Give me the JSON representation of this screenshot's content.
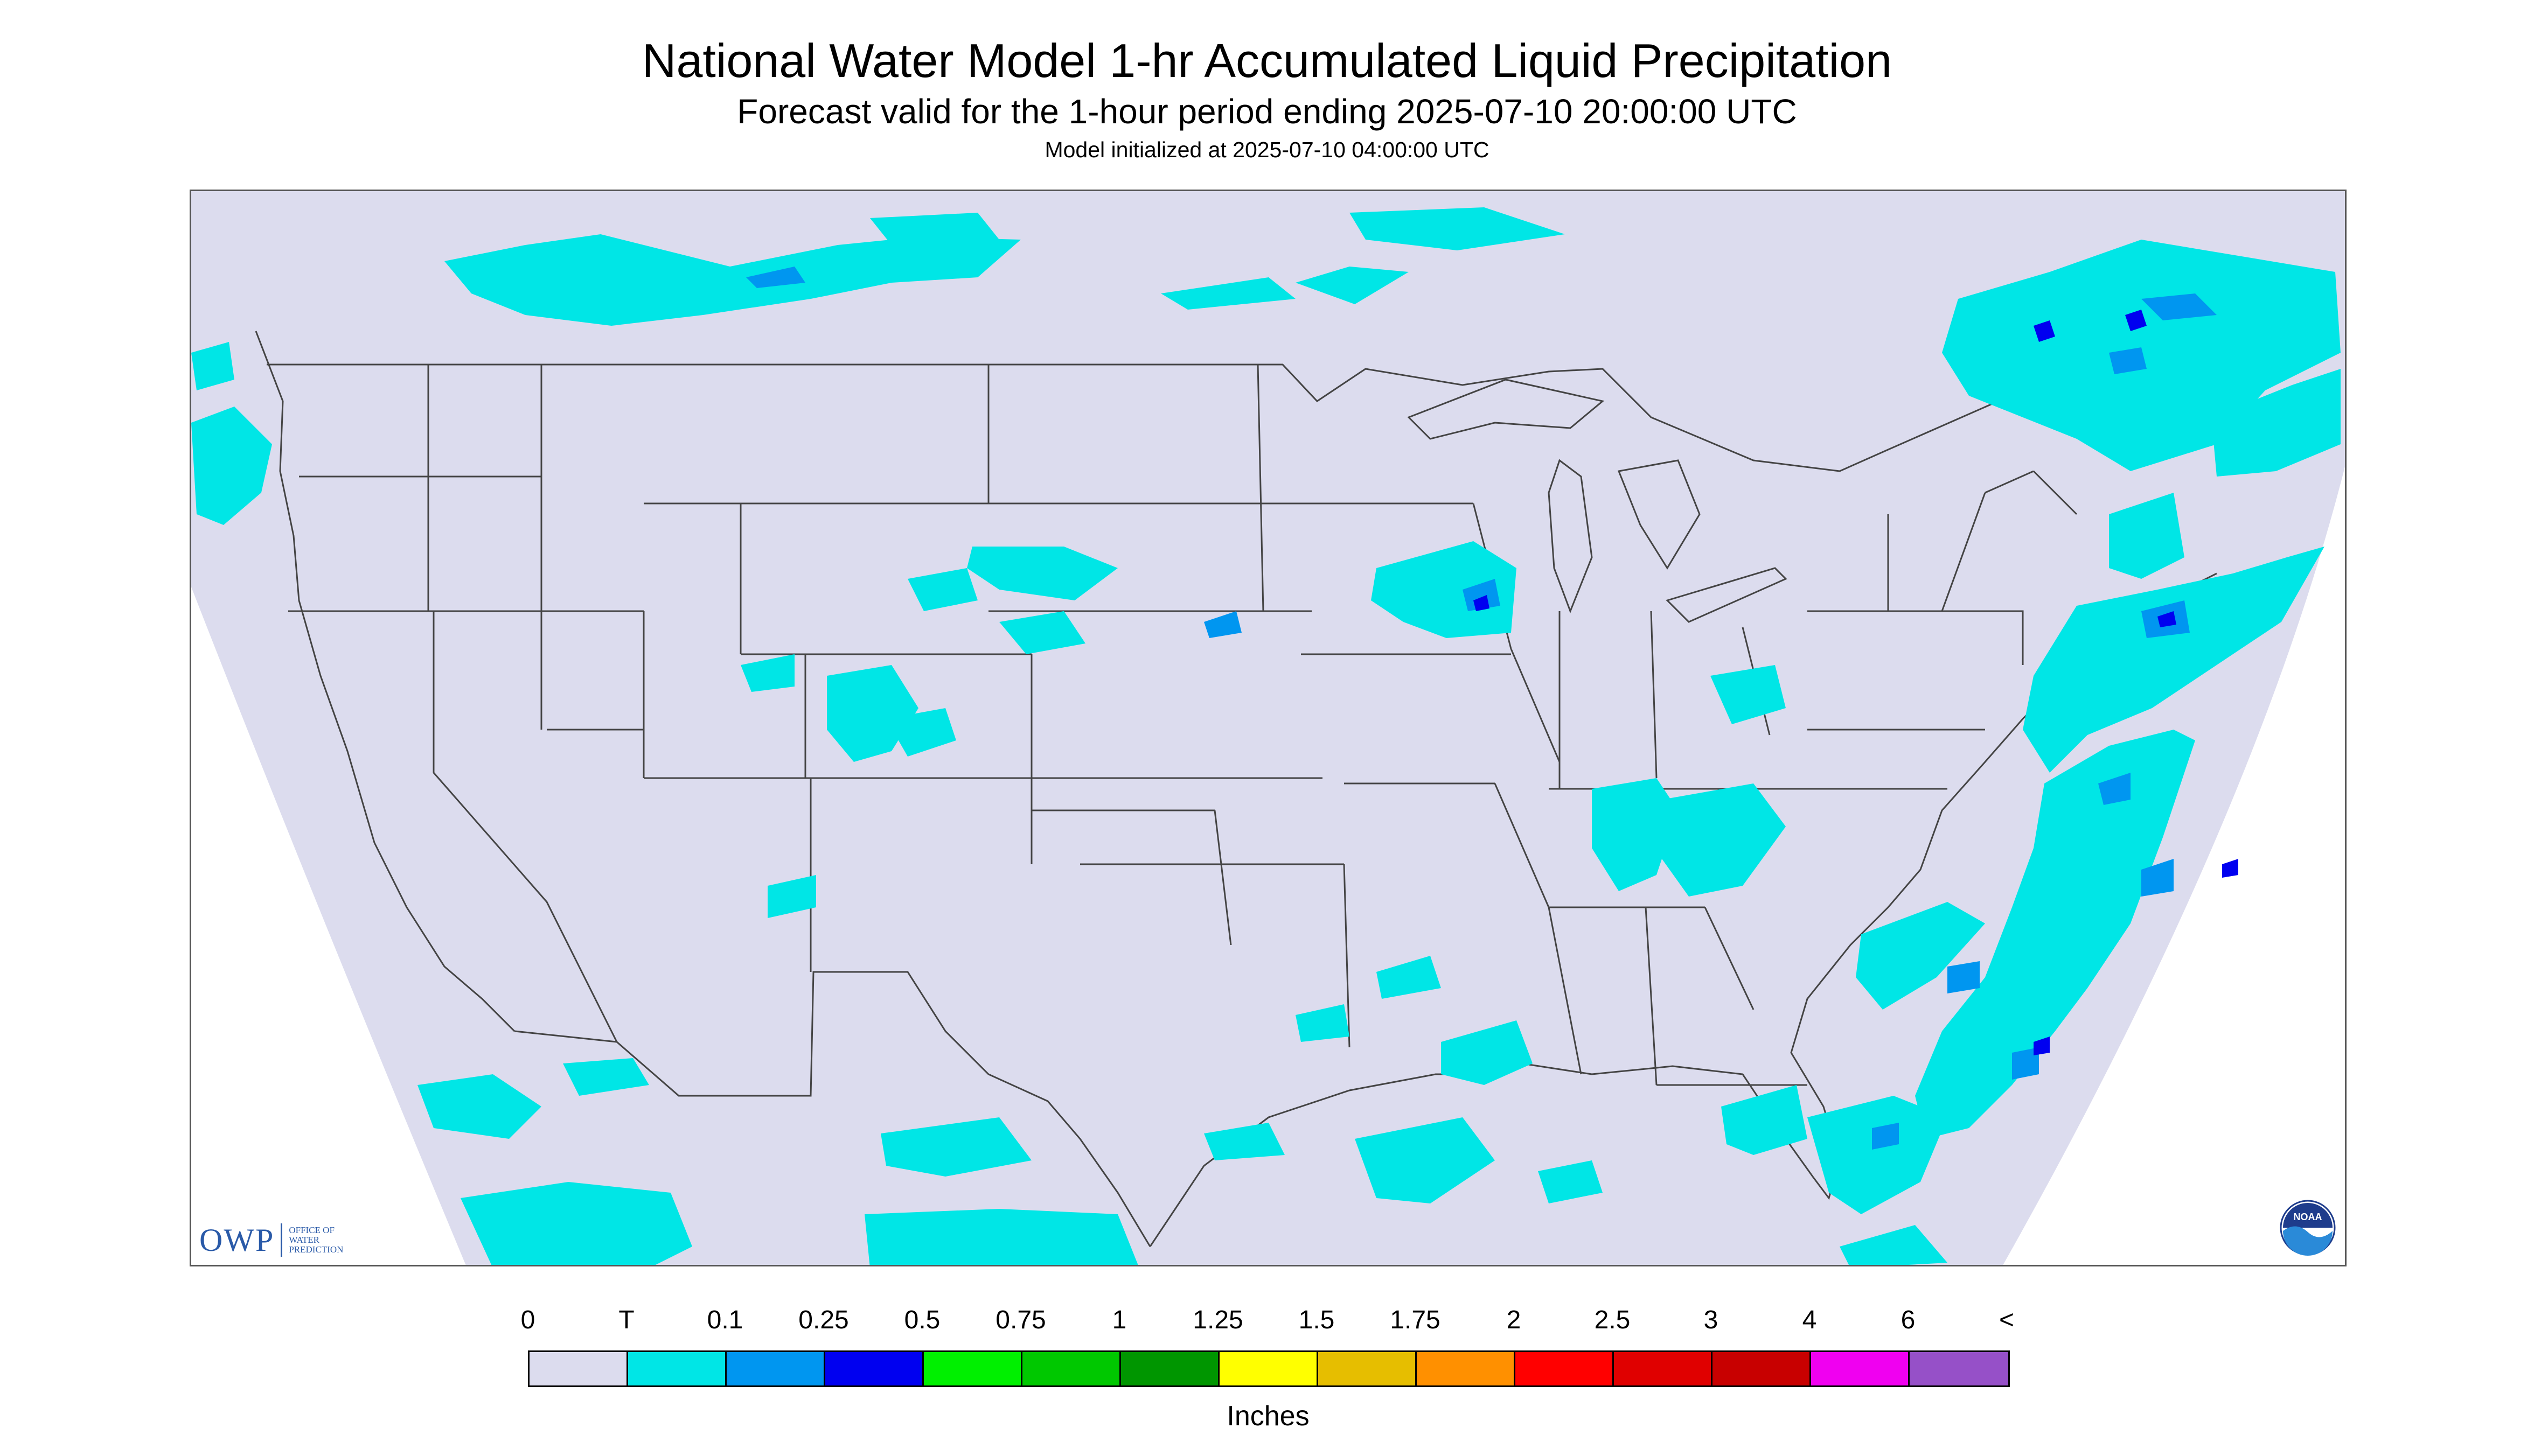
{
  "header": {
    "title": "National Water Model 1-hr Accumulated Liquid Precipitation",
    "subtitle": "Forecast valid for the 1-hour period ending 2025-07-10 20:00:00 UTC",
    "init_line": "Model initialized at 2025-07-10 04:00:00 UTC"
  },
  "logos": {
    "owp_mark": "OWP",
    "owp_text": [
      "OFFICE OF",
      "WATER",
      "PREDICTION"
    ],
    "noaa_text": "NOAA"
  },
  "legend": {
    "labels": [
      "0",
      "T",
      "0.1",
      "0.25",
      "0.5",
      "0.75",
      "1",
      "1.25",
      "1.5",
      "1.75",
      "2",
      "2.5",
      "3",
      "4",
      "6",
      "<"
    ],
    "colors": [
      "#dcdcee",
      "#00e6e6",
      "#0096f0",
      "#0000f0",
      "#00f000",
      "#00c800",
      "#009600",
      "#ffff00",
      "#e6be00",
      "#ff9000",
      "#ff0000",
      "#e00000",
      "#c80000",
      "#f000f0",
      "#9650c8"
    ],
    "unit": "Inches"
  },
  "map": {
    "domain_fill": "#dcdcee",
    "outside_fill": "#ffffff",
    "boundary_color": "#444444",
    "precip_light": "#00e6e6",
    "precip_medium": "#0096f0",
    "precip_heavy": "#0000f0"
  }
}
